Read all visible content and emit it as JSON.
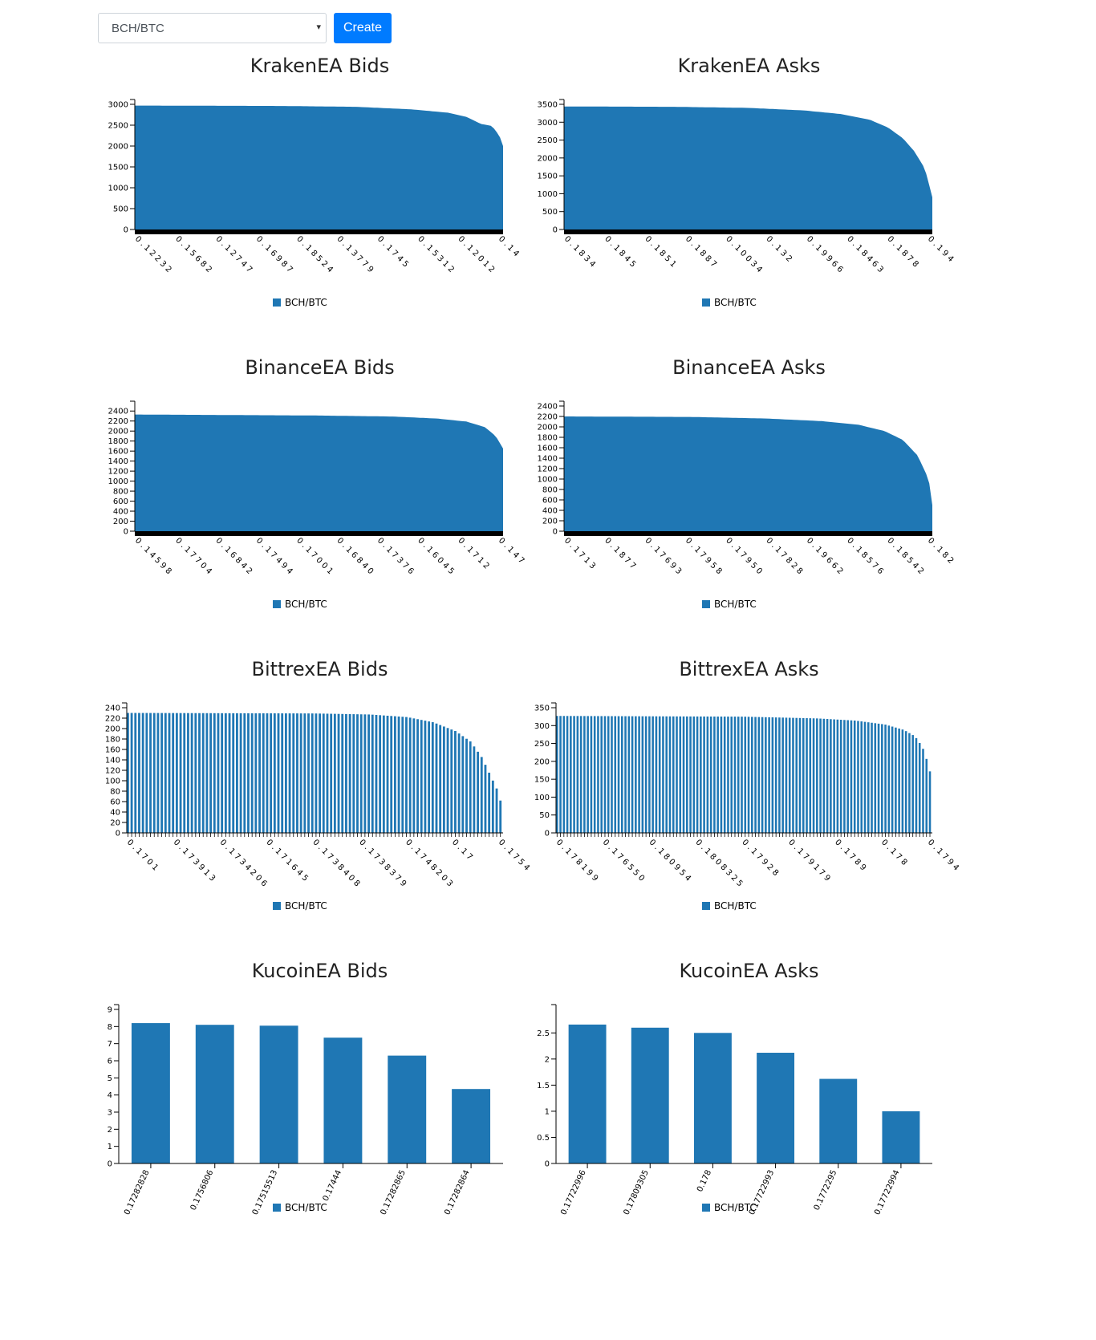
{
  "controls": {
    "pair_value": "BCH/BTC",
    "create_label": "Create"
  },
  "colors": {
    "bar": "#1f77b4",
    "button": "#007bff"
  },
  "icons": {
    "select_caret": "caret-down-icon"
  },
  "chart_data": [
    {
      "id": "kraken-bids",
      "type": "bar",
      "title": "KrakenEA Bids",
      "legend": "BCH/BTC",
      "bar_style": "dense",
      "ylim": [
        0,
        3000
      ],
      "yticks": [
        0,
        500,
        1000,
        1500,
        2000,
        2500,
        3000
      ],
      "xticks": [
        "0.12232",
        "0.15682",
        "0.12747",
        "0.16987",
        "0.18524",
        "0.13779",
        "0.1745",
        "0.15312",
        "0.12012",
        "0.14"
      ],
      "curve": [
        [
          0,
          2970
        ],
        [
          0.4,
          2960
        ],
        [
          0.6,
          2940
        ],
        [
          0.75,
          2880
        ],
        [
          0.85,
          2800
        ],
        [
          0.9,
          2700
        ],
        [
          0.94,
          2530
        ],
        [
          0.97,
          2480
        ],
        [
          0.99,
          2250
        ],
        [
          1,
          2000
        ]
      ]
    },
    {
      "id": "kraken-asks",
      "type": "bar",
      "title": "KrakenEA Asks",
      "legend": "BCH/BTC",
      "bar_style": "dense",
      "ylim": [
        0,
        3500
      ],
      "yticks": [
        0,
        500,
        1000,
        1500,
        2000,
        2500,
        3000,
        3500
      ],
      "xticks": [
        "0.1834",
        "0.1845",
        "0.1851",
        "0.1887",
        "0.10034",
        "0.132",
        "0.19966",
        "0.18463",
        "0.1878",
        "0.194"
      ],
      "curve": [
        [
          0,
          3440
        ],
        [
          0.3,
          3430
        ],
        [
          0.5,
          3400
        ],
        [
          0.65,
          3330
        ],
        [
          0.75,
          3230
        ],
        [
          0.83,
          3070
        ],
        [
          0.88,
          2850
        ],
        [
          0.92,
          2550
        ],
        [
          0.95,
          2200
        ],
        [
          0.98,
          1700
        ],
        [
          1,
          900
        ]
      ]
    },
    {
      "id": "binance-bids",
      "type": "bar",
      "title": "BinanceEA Bids",
      "legend": "BCH/BTC",
      "bar_style": "dense",
      "ylim": [
        0,
        2500
      ],
      "yticks": [
        0,
        200,
        400,
        600,
        800,
        1000,
        1200,
        1400,
        1600,
        1800,
        2000,
        2200,
        2400
      ],
      "xticks": [
        "0.14598",
        "0.17704",
        "0.16842",
        "0.17494",
        "0.17001",
        "0.16840",
        "0.17376",
        "0.16045",
        "0.1712",
        "0.147"
      ],
      "curve": [
        [
          0,
          2330
        ],
        [
          0.5,
          2310
        ],
        [
          0.7,
          2290
        ],
        [
          0.82,
          2250
        ],
        [
          0.9,
          2190
        ],
        [
          0.95,
          2080
        ],
        [
          0.98,
          1900
        ],
        [
          1,
          1650
        ]
      ]
    },
    {
      "id": "binance-asks",
      "type": "bar",
      "title": "BinanceEA Asks",
      "legend": "BCH/BTC",
      "bar_style": "dense",
      "ylim": [
        0,
        2400
      ],
      "yticks": [
        0,
        200,
        400,
        600,
        800,
        1000,
        1200,
        1400,
        1600,
        1800,
        2000,
        2200,
        2400
      ],
      "xticks": [
        "0.1713",
        "0.1877",
        "0.17693",
        "0.17958",
        "0.17950",
        "0.17828",
        "0.19662",
        "0.18576",
        "0.18542",
        "0.182"
      ],
      "curve": [
        [
          0,
          2200
        ],
        [
          0.35,
          2190
        ],
        [
          0.55,
          2160
        ],
        [
          0.7,
          2110
        ],
        [
          0.8,
          2040
        ],
        [
          0.87,
          1920
        ],
        [
          0.92,
          1750
        ],
        [
          0.96,
          1450
        ],
        [
          0.99,
          1000
        ],
        [
          1,
          500
        ]
      ]
    },
    {
      "id": "bittrex-bids",
      "type": "bar",
      "title": "BittrexEA Bids",
      "legend": "BCH/BTC",
      "bar_style": "striped",
      "bar_count": 100,
      "ylim": [
        0,
        240
      ],
      "yticks": [
        0,
        20,
        40,
        60,
        80,
        100,
        120,
        140,
        160,
        180,
        200,
        220,
        240
      ],
      "xticks": [
        "0.1701",
        "0.173913",
        "0.1734206",
        "0.171645",
        "0.1738408",
        "0.1738379",
        "0.1748203",
        "0.17",
        "0.1754"
      ],
      "curve": [
        [
          0,
          230
        ],
        [
          0.5,
          229
        ],
        [
          0.65,
          227
        ],
        [
          0.75,
          222
        ],
        [
          0.82,
          212
        ],
        [
          0.88,
          195
        ],
        [
          0.92,
          175
        ],
        [
          0.95,
          145
        ],
        [
          0.97,
          115
        ],
        [
          0.99,
          85
        ],
        [
          1,
          62
        ]
      ]
    },
    {
      "id": "bittrex-asks",
      "type": "bar",
      "title": "BittrexEA Asks",
      "legend": "BCH/BTC",
      "bar_style": "striped",
      "bar_count": 110,
      "ylim": [
        0,
        350
      ],
      "yticks": [
        0,
        50,
        100,
        150,
        200,
        250,
        300,
        350
      ],
      "xticks": [
        "0.178199",
        "0.176550",
        "0.180954",
        "0.1808325",
        "0.17928",
        "0.179179",
        "0.1789",
        "0.178",
        "0.1794"
      ],
      "curve": [
        [
          0,
          327
        ],
        [
          0.5,
          325
        ],
        [
          0.7,
          320
        ],
        [
          0.8,
          314
        ],
        [
          0.88,
          303
        ],
        [
          0.93,
          288
        ],
        [
          0.96,
          270
        ],
        [
          0.98,
          240
        ],
        [
          0.99,
          210
        ],
        [
          1,
          172
        ]
      ]
    },
    {
      "id": "kucoin-bids",
      "type": "bar",
      "title": "KucoinEA Bids",
      "legend": "BCH/BTC",
      "bar_style": "categorical",
      "ylim": [
        0,
        9
      ],
      "yticks": [
        0,
        1,
        2,
        3,
        4,
        5,
        6,
        7,
        8,
        9
      ],
      "categories": [
        "0.17282828",
        "0.1756806",
        "0.17515513",
        "0.17444",
        "0.17282865",
        "0.17282864"
      ],
      "values": [
        8.2,
        8.1,
        8.05,
        7.35,
        6.3,
        4.35
      ]
    },
    {
      "id": "kucoin-asks",
      "type": "bar",
      "title": "KucoinEA Asks",
      "legend": "BCH/BTC",
      "bar_style": "categorical",
      "ylim": [
        0,
        2.95
      ],
      "yticks": [
        0,
        0.5,
        1,
        1.5,
        2,
        2.5
      ],
      "categories": [
        "0.17722996",
        "0.17809305",
        "0.178",
        "0.17722993",
        "0.1772295",
        "0.17722994"
      ],
      "values": [
        2.66,
        2.6,
        2.5,
        2.12,
        1.62,
        1.0
      ]
    }
  ]
}
